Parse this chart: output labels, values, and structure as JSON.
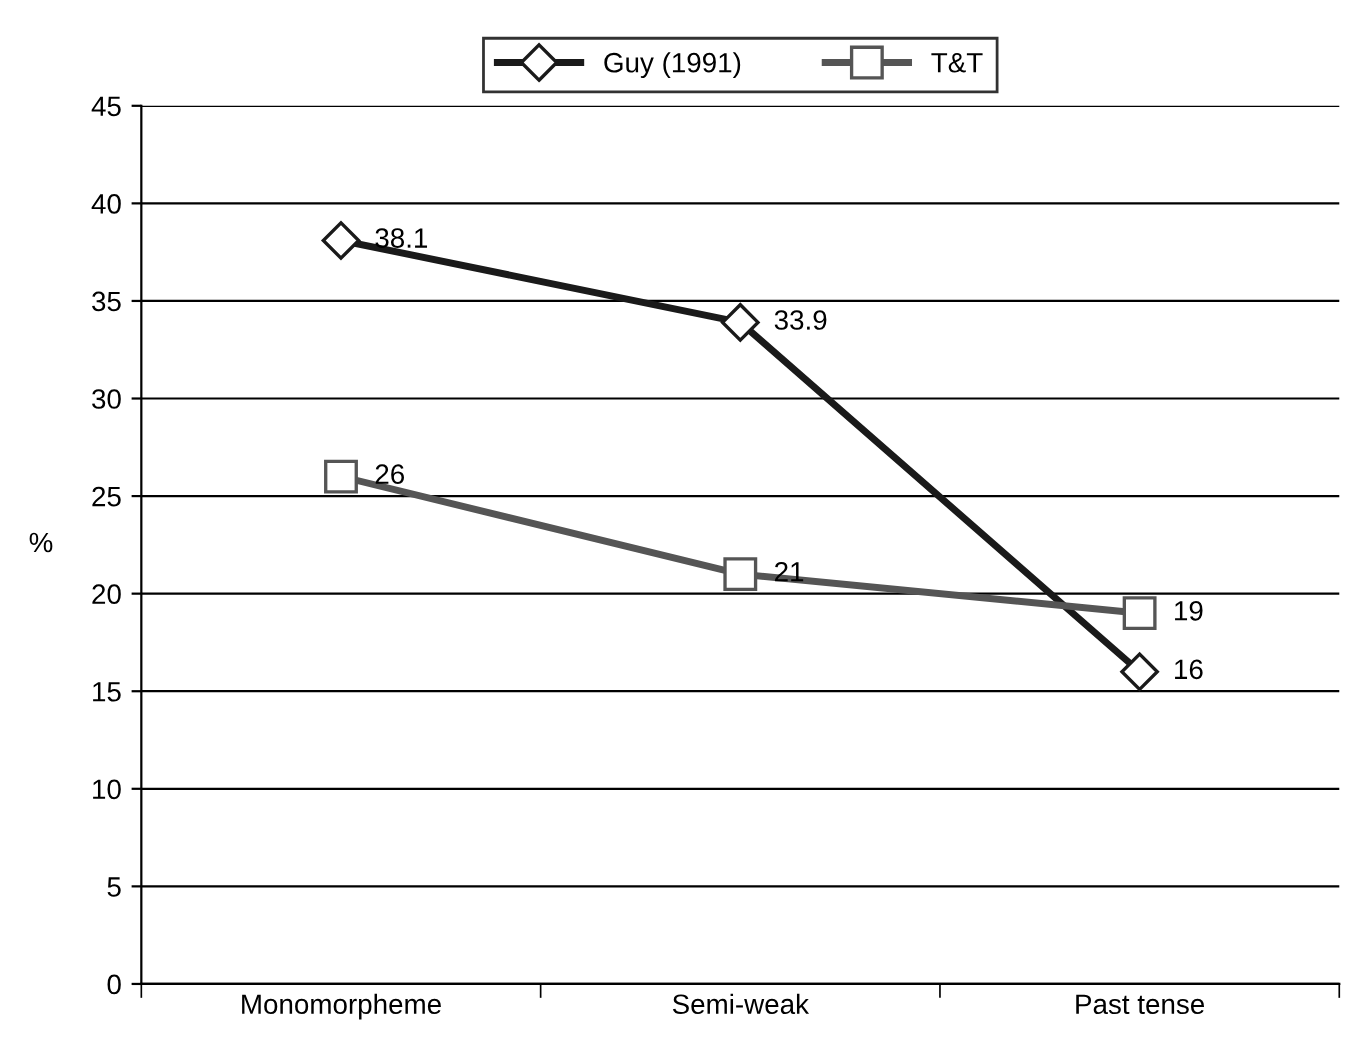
{
  "chart_data": {
    "type": "line",
    "categories": [
      "Monomorpheme",
      "Semi-weak",
      "Past tense"
    ],
    "series": [
      {
        "name": "Guy (1991)",
        "color": "#1a1a1a",
        "marker": "diamond",
        "values": [
          38.1,
          33.9,
          16
        ]
      },
      {
        "name": "T&T",
        "color": "#555555",
        "marker": "square",
        "values": [
          26,
          21,
          19
        ]
      }
    ],
    "ylabel": "%",
    "ylim": [
      0,
      45
    ],
    "yticks": [
      0,
      5,
      10,
      15,
      20,
      25,
      30,
      35,
      40,
      45
    ],
    "grid": "y",
    "legend": "top",
    "data_labels": true,
    "line_style": "solid"
  }
}
